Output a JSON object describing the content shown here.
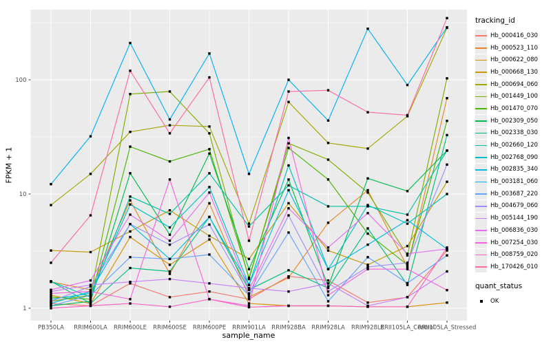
{
  "figure": {
    "background": "#FFFFFF",
    "panel_background": "#EBEBEB",
    "grid_major_color": "#FFFFFF",
    "grid_minor_color": "#F7F7F7",
    "tick_color": "#333333",
    "tick_label_color": "#4D4D4D",
    "point_color": "#000000"
  },
  "axes": {
    "x_title": "sample_name",
    "y_title": "FPKM + 1",
    "y_tick_labels": [
      "1",
      "10",
      "100"
    ]
  },
  "legend": {
    "tracking_title": "tracking_id",
    "quant_title": "quant_status",
    "quant_items": [
      {
        "label": "OK",
        "marker": "black-square"
      }
    ]
  },
  "chart_data": {
    "type": "line",
    "y_scale": "log10",
    "ylim": [
      0.78,
      410
    ],
    "grid": true,
    "legend_position": "right",
    "xlabel": "sample_name",
    "ylabel": "FPKM + 1",
    "y_ticks": [
      1,
      10,
      100
    ],
    "y_minor_ticks": [
      3.1623,
      31.623,
      316.23
    ],
    "point_marker": "black-square",
    "x_categories": [
      "PB350LA",
      "RRIM600LA",
      "RRIM600LE",
      "RRIM600SE",
      "RRIM600PE",
      "RRIM901LA",
      "RRIM928BA",
      "RRIM928LA",
      "RRIM928LE",
      "RRII105LA_Control",
      "RRII105LA_Stressed"
    ],
    "series": [
      {
        "name": "Hb_000416_030",
        "color": "#F8766D",
        "values": [
          1.1,
          1.05,
          1.65,
          1.25,
          1.4,
          1.2,
          1.9,
          1.75,
          1.12,
          1.25,
          3.2
        ]
      },
      {
        "name": "Hb_000523_110",
        "color": "#E88526",
        "values": [
          1.7,
          1.45,
          8.8,
          2.0,
          8.3,
          1.25,
          1.85,
          5.6,
          10.8,
          2.3,
          69
        ]
      },
      {
        "name": "Hb_000622_080",
        "color": "#D89000",
        "values": [
          1.3,
          1.1,
          4.2,
          2.4,
          4.0,
          1.1,
          1.05,
          1.05,
          1.03,
          1.03,
          1.12
        ]
      },
      {
        "name": "Hb_000668_130",
        "color": "#C49A00",
        "values": [
          3.2,
          3.1,
          4.7,
          7.2,
          4.3,
          2.7,
          8.3,
          3.2,
          2.4,
          3.5,
          12.8
        ]
      },
      {
        "name": "Hb_000694_060",
        "color": "#A3A500",
        "values": [
          8.0,
          15.0,
          35,
          40,
          39,
          5.5,
          64,
          28,
          25,
          48,
          285
        ]
      },
      {
        "name": "Hb_001449_100",
        "color": "#7CAE00",
        "values": [
          1.15,
          1.3,
          75,
          79,
          34,
          1.8,
          27.8,
          20,
          10.3,
          2.9,
          103
        ]
      },
      {
        "name": "Hb_001470_070",
        "color": "#49B500",
        "values": [
          1.25,
          1.2,
          26,
          19.3,
          24.7,
          1.85,
          25.3,
          13.4,
          4.5,
          2.4,
          43.7
        ]
      },
      {
        "name": "Hb_002309_050",
        "color": "#00BB4E",
        "values": [
          1.05,
          1.15,
          15.2,
          4.4,
          22.6,
          2.2,
          13.4,
          1.55,
          13.7,
          10.6,
          24
        ]
      },
      {
        "name": "Hb_002338_030",
        "color": "#00BF7D",
        "values": [
          1.72,
          1.1,
          2.25,
          2.1,
          6.3,
          1.45,
          2.15,
          1.5,
          5.0,
          1.6,
          32.8
        ]
      },
      {
        "name": "Hb_002660_120",
        "color": "#00C1A7",
        "values": [
          1.72,
          1.25,
          9.5,
          6.7,
          15.2,
          5.2,
          11.9,
          7.8,
          7.8,
          6.6,
          24
        ]
      },
      {
        "name": "Hb_002768_090",
        "color": "#00BFC4",
        "values": [
          1.2,
          1.35,
          8.1,
          5.1,
          11.5,
          1.6,
          17.8,
          2.2,
          8.0,
          5.5,
          10.0
        ]
      },
      {
        "name": "Hb_002835_340",
        "color": "#00BAE5",
        "values": [
          1.1,
          1.4,
          5.45,
          2.7,
          6.3,
          1.6,
          10.8,
          2.2,
          3.6,
          5.9,
          3.3
        ]
      },
      {
        "name": "Hb_003181_060",
        "color": "#00B0F6",
        "values": [
          12.2,
          32,
          210,
          45,
          170,
          15,
          100,
          44,
          280,
          90,
          288
        ]
      },
      {
        "name": "Hb_003687_220",
        "color": "#61A3FF",
        "values": [
          1.05,
          1.3,
          2.8,
          2.7,
          2.95,
          1.3,
          4.6,
          1.15,
          2.8,
          1.66,
          2.9
        ]
      },
      {
        "name": "Hb_004679_060",
        "color": "#9C8DFF",
        "values": [
          1.15,
          1.55,
          5.45,
          3.6,
          5.4,
          1.35,
          6.5,
          1.4,
          2.3,
          2.5,
          18.1
        ]
      },
      {
        "name": "Hb_005144_190",
        "color": "#C77CFF",
        "values": [
          1.4,
          1.6,
          1.7,
          1.8,
          1.65,
          1.5,
          1.4,
          1.65,
          1.05,
          1.25,
          2.1
        ]
      },
      {
        "name": "Hb_006836_030",
        "color": "#E76BF3",
        "values": [
          1.45,
          1.75,
          6.6,
          3.9,
          10.3,
          1.45,
          7.5,
          3.4,
          6.8,
          3.0,
          3.3
        ]
      },
      {
        "name": "Hb_007254_030",
        "color": "#FA62DB",
        "values": [
          1.35,
          1.4,
          1.2,
          13.4,
          1.2,
          1.05,
          31,
          1.3,
          2.2,
          2.2,
          1.44
        ]
      },
      {
        "name": "Hb_008759_020",
        "color": "#FF61C7",
        "values": [
          1.0,
          1.05,
          1.1,
          1.03,
          1.2,
          1.02,
          1.05,
          1.05,
          1.03,
          1.03,
          3.4
        ]
      },
      {
        "name": "Hb_170426_010",
        "color": "#FF68A1",
        "values": [
          2.5,
          6.5,
          120,
          34,
          105,
          3.9,
          79,
          81,
          52,
          49,
          347
        ]
      }
    ]
  }
}
